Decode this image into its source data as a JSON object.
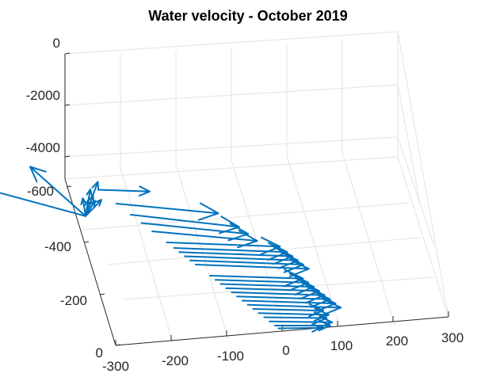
{
  "chart_data": {
    "type": "quiver3d",
    "title": "Water velocity - October 2019",
    "xlabel": "",
    "ylabel": "",
    "zlabel": "",
    "x_ticks": [
      "-300",
      "-200",
      "-100",
      "0",
      "100",
      "200",
      "300"
    ],
    "y_ticks": [
      "0",
      "-200",
      "-400",
      "-600"
    ],
    "z_ticks": [
      "0",
      "-2000",
      "-4000"
    ],
    "xlim": [
      -300,
      300
    ],
    "ylim": [
      -600,
      0
    ],
    "zlim": [
      -5000,
      0
    ],
    "grid": true,
    "color": "#0072bd",
    "series": [
      {
        "vectors": [
          {
            "x": 0,
            "y": -545,
            "z": -1400,
            "u": -350,
            "v": 30,
            "w": 2900
          },
          {
            "x": 0,
            "y": -545,
            "z": -1400,
            "u": -100,
            "v": 0,
            "w": 2100
          },
          {
            "x": 0,
            "y": -545,
            "z": -1400,
            "u": 35,
            "v": -20,
            "w": 1050
          },
          {
            "x": 0,
            "y": -545,
            "z": -1400,
            "u": 15,
            "v": -10,
            "w": 900
          },
          {
            "x": 0,
            "y": -545,
            "z": -1400,
            "u": -5,
            "v": 0,
            "w": 700
          },
          {
            "x": 0,
            "y": -545,
            "z": -1400,
            "u": 20,
            "v": -10,
            "w": 650
          },
          {
            "x": 0,
            "y": -545,
            "z": -1400,
            "u": 8,
            "v": -5,
            "w": 550
          },
          {
            "x": 0,
            "y": -545,
            "z": -1400,
            "u": 30,
            "v": -20,
            "w": 320
          },
          {
            "x": 0,
            "y": -545,
            "z": -1400,
            "u": 45,
            "v": -25,
            "w": 280
          },
          {
            "x": 0,
            "y": -510,
            "z": 0,
            "u": 80,
            "v": 20,
            "w": 0
          },
          {
            "x": 0,
            "y": -460,
            "z": 0,
            "u": 145,
            "v": 60,
            "w": 0
          },
          {
            "x": 0,
            "y": -420,
            "z": 0,
            "u": 150,
            "v": 70,
            "w": 0
          },
          {
            "x": 0,
            "y": -390,
            "z": 0,
            "u": 150,
            "v": 65,
            "w": 0
          },
          {
            "x": 0,
            "y": -360,
            "z": 0,
            "u": 150,
            "v": 60,
            "w": 0
          },
          {
            "x": 0,
            "y": -320,
            "z": 0,
            "u": 175,
            "v": 45,
            "w": 0
          },
          {
            "x": 0,
            "y": -300,
            "z": 0,
            "u": 175,
            "v": 45,
            "w": 0
          },
          {
            "x": 0,
            "y": -285,
            "z": 0,
            "u": 175,
            "v": 45,
            "w": 0
          },
          {
            "x": 0,
            "y": -270,
            "z": 0,
            "u": 175,
            "v": 45,
            "w": 0
          },
          {
            "x": 0,
            "y": -255,
            "z": 0,
            "u": 175,
            "v": 45,
            "w": 0
          },
          {
            "x": 0,
            "y": -240,
            "z": 0,
            "u": 175,
            "v": 45,
            "w": 0
          },
          {
            "x": 0,
            "y": -200,
            "z": 0,
            "u": 145,
            "v": 35,
            "w": 0
          },
          {
            "x": 0,
            "y": -185,
            "z": 0,
            "u": 145,
            "v": 35,
            "w": 0
          },
          {
            "x": 0,
            "y": -170,
            "z": 0,
            "u": 145,
            "v": 35,
            "w": 0
          },
          {
            "x": 0,
            "y": -155,
            "z": 0,
            "u": 145,
            "v": 35,
            "w": 0
          },
          {
            "x": 0,
            "y": -140,
            "z": 0,
            "u": 145,
            "v": 35,
            "w": 0
          },
          {
            "x": 0,
            "y": -125,
            "z": 0,
            "u": 145,
            "v": 35,
            "w": 0
          },
          {
            "x": 0,
            "y": -110,
            "z": 0,
            "u": 145,
            "v": 35,
            "w": 0
          },
          {
            "x": 0,
            "y": -95,
            "z": 0,
            "u": 145,
            "v": 35,
            "w": 0
          },
          {
            "x": 0,
            "y": -80,
            "z": 0,
            "u": 110,
            "v": 25,
            "w": 0
          },
          {
            "x": 0,
            "y": -65,
            "z": 0,
            "u": 110,
            "v": 25,
            "w": 0
          },
          {
            "x": 0,
            "y": -50,
            "z": 0,
            "u": 100,
            "v": 20,
            "w": 0
          },
          {
            "x": 0,
            "y": -35,
            "z": 0,
            "u": 100,
            "v": 20,
            "w": 0
          },
          {
            "x": 0,
            "y": -20,
            "z": 0,
            "u": 90,
            "v": 15,
            "w": 0
          },
          {
            "x": 0,
            "y": -10,
            "z": 0,
            "u": 70,
            "v": 10,
            "w": 0
          }
        ]
      }
    ]
  }
}
